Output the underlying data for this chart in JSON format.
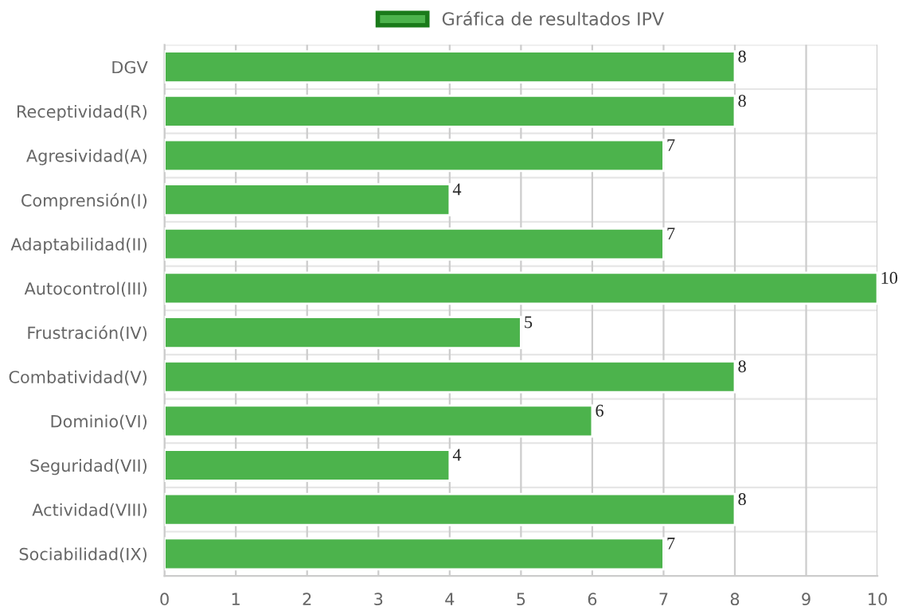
{
  "chart_data": {
    "type": "bar",
    "orientation": "horizontal",
    "categories": [
      "DGV",
      "Receptividad(R)",
      "Agresividad(A)",
      "Comprensión(I)",
      "Adaptabilidad(II)",
      "Autocontrol(III)",
      "Frustración(IV)",
      "Combatividad(V)",
      "Dominio(VI)",
      "Seguridad(VII)",
      "Actividad(VIII)",
      "Sociabilidad(IX)"
    ],
    "series": [
      {
        "name": "Gráfica de resultados IPV",
        "color": "#4cb34c",
        "values": [
          8,
          8,
          7,
          4,
          7,
          10,
          5,
          8,
          6,
          4,
          8,
          7
        ]
      }
    ],
    "xlim": [
      0,
      10
    ],
    "xticks": [
      0,
      1,
      2,
      3,
      4,
      5,
      6,
      7,
      8,
      9,
      10
    ],
    "grid": true,
    "legend": "top",
    "data_labels": true
  }
}
